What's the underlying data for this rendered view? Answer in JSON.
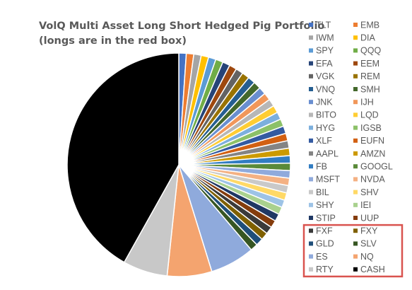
{
  "chart_data": {
    "type": "pie",
    "title": "VolQ Multi Asset Long Short Hedged Pig Portfolio",
    "subtitle": "(longs are in the red box)",
    "legend_position": "right",
    "highlight_box_color": "#d9534f",
    "highlight_first_index": 32,
    "slices": [
      {
        "name": "TLT",
        "value": 0.9,
        "color": "#4472c4"
      },
      {
        "name": "EMB",
        "value": 0.9,
        "color": "#ed7d31"
      },
      {
        "name": "IWM",
        "value": 0.9,
        "color": "#a5a5a5"
      },
      {
        "name": "DIA",
        "value": 0.9,
        "color": "#ffc000"
      },
      {
        "name": "SPY",
        "value": 0.9,
        "color": "#5b9bd5"
      },
      {
        "name": "QQQ",
        "value": 0.9,
        "color": "#70ad47"
      },
      {
        "name": "EFA",
        "value": 0.9,
        "color": "#264478"
      },
      {
        "name": "EEM",
        "value": 0.9,
        "color": "#9e480e"
      },
      {
        "name": "VGK",
        "value": 0.9,
        "color": "#636363"
      },
      {
        "name": "REM",
        "value": 0.9,
        "color": "#997300"
      },
      {
        "name": "VNQ",
        "value": 0.9,
        "color": "#255e91"
      },
      {
        "name": "SMH",
        "value": 0.9,
        "color": "#43682b"
      },
      {
        "name": "JNK",
        "value": 0.9,
        "color": "#698ed0"
      },
      {
        "name": "IJH",
        "value": 0.9,
        "color": "#f1975a"
      },
      {
        "name": "BITO",
        "value": 0.9,
        "color": "#b7b7b7"
      },
      {
        "name": "LQD",
        "value": 0.9,
        "color": "#ffcd33"
      },
      {
        "name": "HYG",
        "value": 0.9,
        "color": "#7cafdd"
      },
      {
        "name": "IGSB",
        "value": 0.9,
        "color": "#8cc168"
      },
      {
        "name": "XLF",
        "value": 0.9,
        "color": "#335aa1"
      },
      {
        "name": "EUFN",
        "value": 0.9,
        "color": "#d26012"
      },
      {
        "name": "AAPL",
        "value": 0.9,
        "color": "#848484"
      },
      {
        "name": "AMZN",
        "value": 0.9,
        "color": "#cc9a00"
      },
      {
        "name": "FB",
        "value": 0.9,
        "color": "#327dc2"
      },
      {
        "name": "GOOGL",
        "value": 0.9,
        "color": "#5a8a39"
      },
      {
        "name": "MSFT",
        "value": 0.9,
        "color": "#8faadc"
      },
      {
        "name": "NVDA",
        "value": 0.9,
        "color": "#f4b183"
      },
      {
        "name": "BIL",
        "value": 0.9,
        "color": "#c9c9c9"
      },
      {
        "name": "SHV",
        "value": 0.9,
        "color": "#ffd966"
      },
      {
        "name": "SHY",
        "value": 0.9,
        "color": "#9dc3e6"
      },
      {
        "name": "IEI",
        "value": 0.9,
        "color": "#a9d18e"
      },
      {
        "name": "STIP",
        "value": 0.9,
        "color": "#1f3864"
      },
      {
        "name": "UUP",
        "value": 0.9,
        "color": "#843c0c"
      },
      {
        "name": "FXF",
        "value": 0.9,
        "color": "#3a3a3a"
      },
      {
        "name": "FXY",
        "value": 0.9,
        "color": "#7f6000"
      },
      {
        "name": "GLD",
        "value": 0.9,
        "color": "#1f4e79"
      },
      {
        "name": "SLV",
        "value": 0.9,
        "color": "#375623"
      },
      {
        "name": "ES",
        "value": 5.4,
        "color": "#8faadc"
      },
      {
        "name": "NQ",
        "value": 5.4,
        "color": "#f4a46f"
      },
      {
        "name": "RTY",
        "value": 5.4,
        "color": "#c8c8c8"
      },
      {
        "name": "CASH",
        "value": 35,
        "color": "#000000"
      }
    ]
  }
}
